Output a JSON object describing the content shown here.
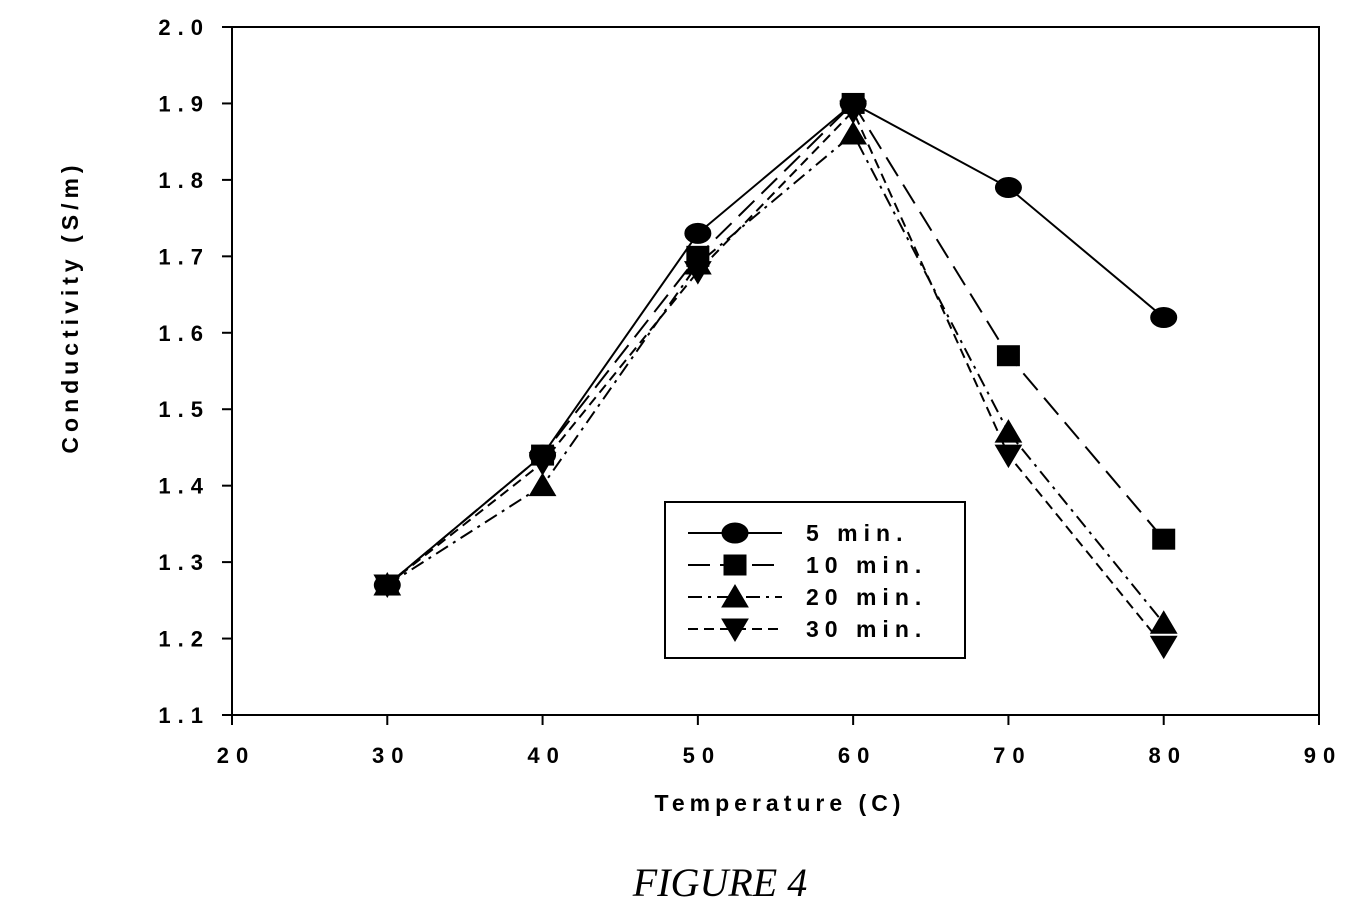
{
  "chart_data": {
    "type": "line",
    "title": "",
    "xlabel": "Temperature (C)",
    "ylabel": "Conductivity (S/m)",
    "xlim": [
      20,
      90
    ],
    "ylim": [
      1.1,
      2.0
    ],
    "x_ticks": [
      "20",
      "30",
      "40",
      "50",
      "60",
      "70",
      "80",
      "90"
    ],
    "y_ticks": [
      "1.1",
      "1.2",
      "1.3",
      "1.4",
      "1.5",
      "1.6",
      "1.7",
      "1.8",
      "1.9",
      "2.0"
    ],
    "grid": false,
    "legend_position": "center-right-bottom",
    "series": [
      {
        "name": "5 min.",
        "marker": "circle",
        "line_style": "solid",
        "x": [
          30,
          40,
          50,
          60,
          70,
          80
        ],
        "y": [
          1.27,
          1.44,
          1.73,
          1.9,
          1.79,
          1.62
        ]
      },
      {
        "name": "10 min.",
        "marker": "square",
        "line_style": "long-dash",
        "x": [
          30,
          40,
          50,
          60,
          70,
          80
        ],
        "y": [
          1.27,
          1.44,
          1.7,
          1.9,
          1.57,
          1.33
        ]
      },
      {
        "name": "20 min.",
        "marker": "triangle-up",
        "line_style": "dash-dot",
        "x": [
          30,
          40,
          50,
          60,
          70,
          80
        ],
        "y": [
          1.27,
          1.4,
          1.69,
          1.86,
          1.47,
          1.22
        ]
      },
      {
        "name": "30 min.",
        "marker": "triangle-down",
        "line_style": "dash",
        "x": [
          30,
          40,
          50,
          60,
          70,
          80
        ],
        "y": [
          1.27,
          1.43,
          1.68,
          1.89,
          1.44,
          1.19
        ]
      }
    ]
  },
  "caption": "FIGURE 4"
}
